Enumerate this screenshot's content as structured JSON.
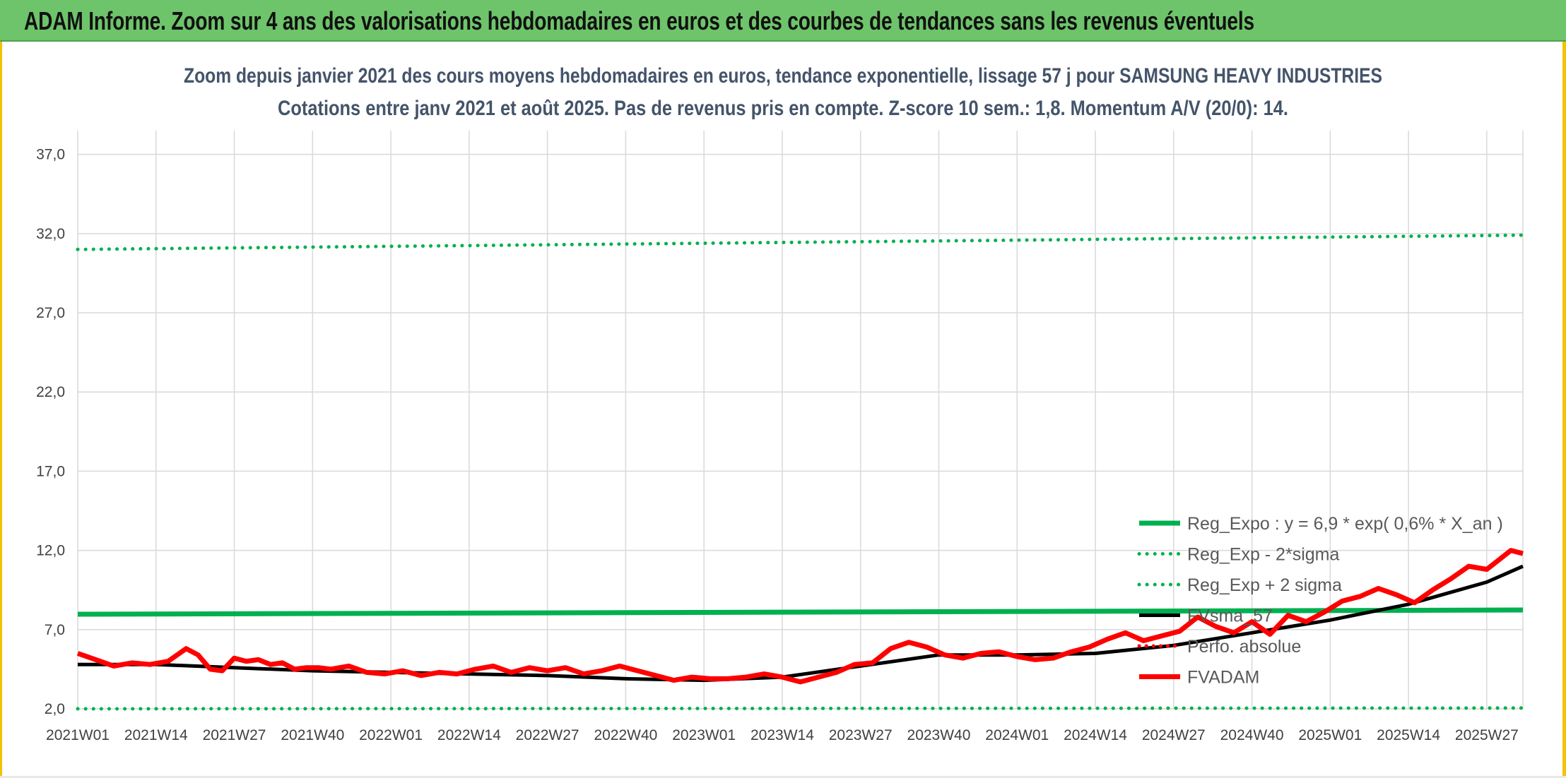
{
  "banner": {
    "title": "ADAM Informe. Zoom sur 4 ans des valorisations hebdomadaires en euros et des courbes de tendances sans les revenus éventuels"
  },
  "colors": {
    "trend_green": "#00b050",
    "fvadam_red": "#ff0000",
    "sma_black": "#000000",
    "title_text": "#44546a",
    "banner_bg": "#6ec46a",
    "frame_yellow": "#f2c300"
  },
  "chart_data": {
    "type": "line",
    "title": "Zoom depuis janvier 2021 des cours moyens hebdomadaires en euros, tendance exponentielle, lissage 57 j pour SAMSUNG HEAVY INDUSTRIES",
    "subtitle": "Cotations entre janv 2021 et août 2025. Pas de revenus pris en compte. Z-score 10 sem.: 1,8. Momentum A/V (20/0): 14.",
    "xlabel": "",
    "ylabel": "",
    "ylim": [
      2,
      38.5
    ],
    "yticks": [
      "2,0",
      "7,0",
      "12,0",
      "17,0",
      "22,0",
      "27,0",
      "32,0",
      "37,0"
    ],
    "xticks": [
      "2021W01",
      "2021W14",
      "2021W27",
      "2021W40",
      "2022W01",
      "2022W14",
      "2022W27",
      "2022W40",
      "2023W01",
      "2023W14",
      "2023W27",
      "2023W40",
      "2024W01",
      "2024W14",
      "2024W27",
      "2024W40",
      "2025W01",
      "2025W14",
      "2025W27"
    ],
    "grid": true,
    "legend_position": "right",
    "series": [
      {
        "name": "Reg_Expo : y = 6,9 * exp( 0,6% *  X_an )",
        "style": "solid",
        "x": [
          0,
          240
        ],
        "values": [
          7.97,
          8.24
        ]
      },
      {
        "name": "Reg_Exp - 2*sigma",
        "style": "dotted",
        "x": [
          0,
          240
        ],
        "values": [
          2.0,
          2.05
        ]
      },
      {
        "name": "Reg_Exp + 2 sigma",
        "style": "dotted",
        "x": [
          0,
          240
        ],
        "values": [
          31.0,
          31.9
        ]
      },
      {
        "name": "FVsma_57",
        "style": "solid",
        "x": [
          0,
          13,
          26,
          39,
          52,
          65,
          78,
          91,
          104,
          117,
          130,
          143,
          156,
          169,
          182,
          195,
          208,
          221,
          234,
          240
        ],
        "values": [
          4.8,
          4.8,
          4.6,
          4.4,
          4.3,
          4.2,
          4.1,
          3.9,
          3.8,
          4.0,
          4.7,
          5.4,
          5.4,
          5.5,
          6.0,
          6.8,
          7.6,
          8.6,
          10.0,
          11.0
        ]
      },
      {
        "name": "Perfo. absolue",
        "style": "dotted",
        "x": [],
        "values": []
      },
      {
        "name": "FVADAM",
        "style": "solid",
        "x": [
          0,
          3,
          6,
          9,
          12,
          15,
          18,
          20,
          22,
          24,
          26,
          28,
          30,
          32,
          34,
          36,
          38,
          40,
          42,
          45,
          48,
          51,
          54,
          57,
          60,
          63,
          66,
          69,
          72,
          75,
          78,
          81,
          84,
          87,
          90,
          93,
          96,
          99,
          102,
          105,
          108,
          111,
          114,
          117,
          120,
          123,
          126,
          129,
          132,
          135,
          138,
          141,
          144,
          147,
          150,
          153,
          156,
          159,
          162,
          165,
          168,
          171,
          174,
          177,
          180,
          183,
          186,
          189,
          192,
          195,
          198,
          201,
          204,
          207,
          210,
          213,
          216,
          219,
          222,
          225,
          228,
          231,
          234,
          236,
          238,
          240
        ],
        "values": [
          5.5,
          5.1,
          4.7,
          4.9,
          4.8,
          5.0,
          5.8,
          5.4,
          4.5,
          4.4,
          5.2,
          5.0,
          5.1,
          4.8,
          4.9,
          4.5,
          4.6,
          4.6,
          4.5,
          4.7,
          4.3,
          4.2,
          4.4,
          4.1,
          4.3,
          4.2,
          4.5,
          4.7,
          4.3,
          4.6,
          4.4,
          4.6,
          4.2,
          4.4,
          4.7,
          4.4,
          4.1,
          3.8,
          4.0,
          3.9,
          3.9,
          4.0,
          4.2,
          4.0,
          3.7,
          4.0,
          4.3,
          4.8,
          4.9,
          5.8,
          6.2,
          5.9,
          5.4,
          5.2,
          5.5,
          5.6,
          5.3,
          5.1,
          5.2,
          5.6,
          5.9,
          6.4,
          6.8,
          6.3,
          6.6,
          6.9,
          7.8,
          7.2,
          6.8,
          7.5,
          6.7,
          7.9,
          7.5,
          8.1,
          8.8,
          9.1,
          9.6,
          9.2,
          8.7,
          9.5,
          10.2,
          11.0,
          10.8,
          11.4,
          12.0,
          11.8
        ]
      }
    ]
  }
}
